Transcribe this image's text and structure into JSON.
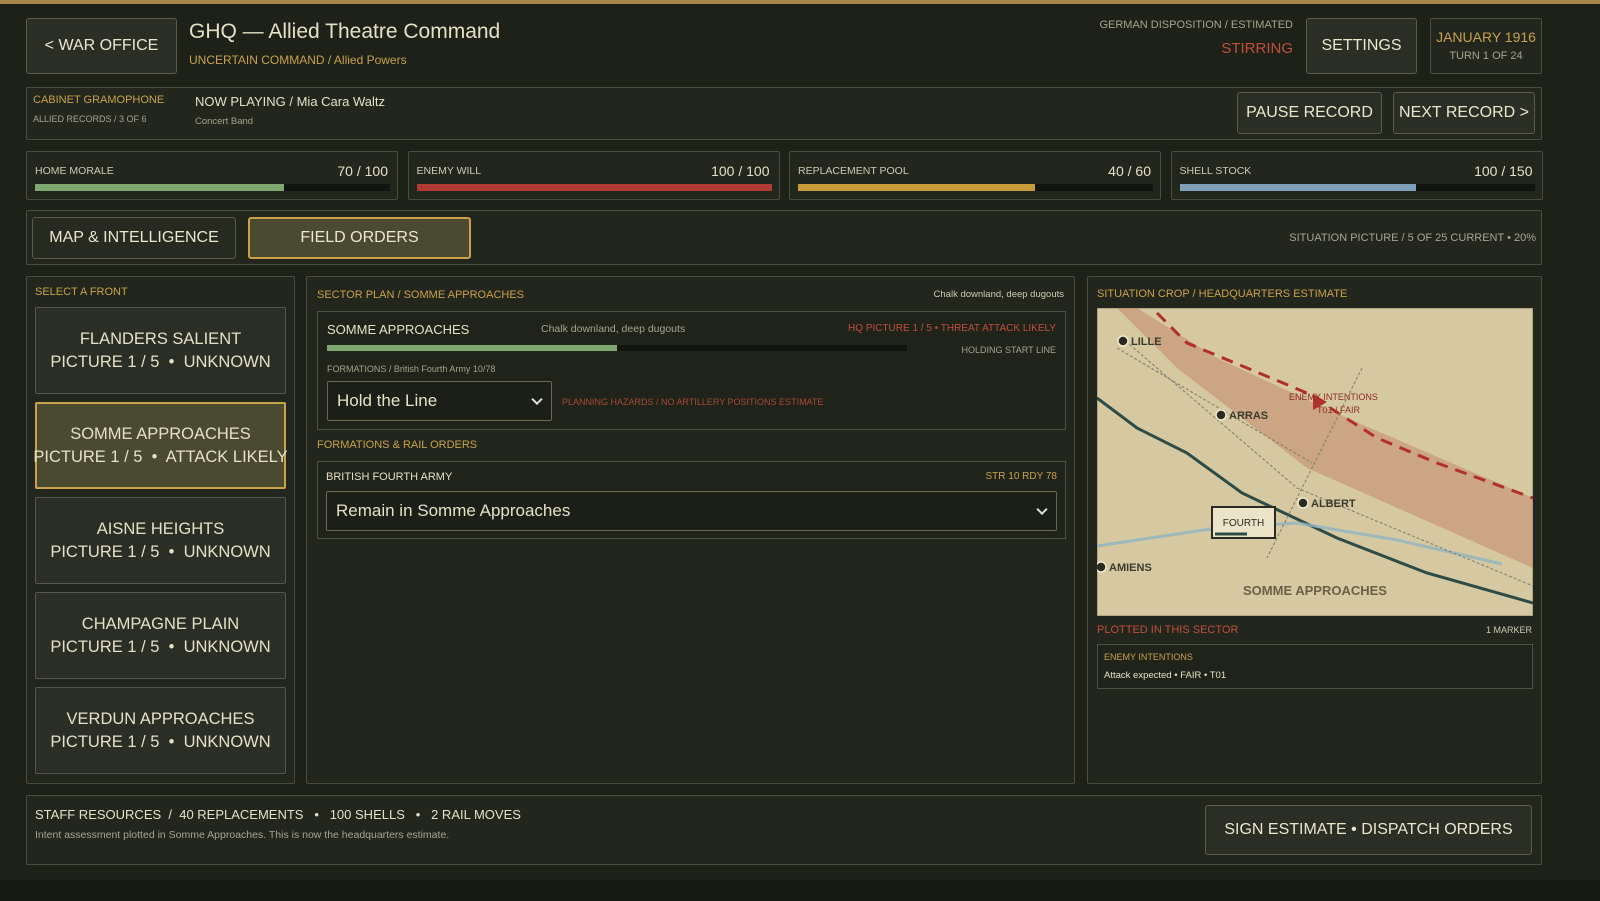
{
  "header": {
    "back": "<  WAR OFFICE",
    "title": "GHQ — Allied Theatre Command",
    "subtitle": "UNCERTAIN COMMAND  /  Allied Powers",
    "disposition_label": "GERMAN DISPOSITION  /  ESTIMATED",
    "disposition": "STIRRING",
    "settings": "SETTINGS",
    "date": "JANUARY 1916",
    "turn": "TURN 1 OF 24"
  },
  "gramophone": {
    "title": "CABINET GRAMOPHONE",
    "records": "ALLIED RECORDS  /  3 OF 6",
    "now_playing": "NOW PLAYING  /  Mia Cara Waltz",
    "artist": "Concert Band",
    "pause": "PAUSE RECORD",
    "next": "NEXT RECORD  >"
  },
  "stats": [
    {
      "label": "HOME MORALE",
      "value_label": "70 / 100",
      "value": 70,
      "max": 100,
      "color": "#7fa870"
    },
    {
      "label": "ENEMY WILL",
      "value_label": "100 / 100",
      "value": 100,
      "max": 100,
      "color": "#b23a34"
    },
    {
      "label": "REPLACEMENT POOL",
      "value_label": "40 / 60",
      "value": 40,
      "max": 60,
      "color": "#c79a3c"
    },
    {
      "label": "SHELL STOCK",
      "value_label": "100 / 150",
      "value": 100,
      "max": 150,
      "color": "#7f9fb8"
    }
  ],
  "tabs": {
    "map": "MAP & INTELLIGENCE",
    "orders": "FIELD ORDERS",
    "situation": "SITUATION PICTURE  /  5 OF 25 CURRENT  •  20%"
  },
  "fronts": {
    "title": "SELECT A FRONT",
    "selected": 1,
    "items": [
      {
        "name": "FLANDERS SALIENT",
        "status": "PICTURE 1 / 5  •  UNKNOWN"
      },
      {
        "name": "SOMME APPROACHES",
        "status": "PICTURE 1 / 5  •  ATTACK LIKELY"
      },
      {
        "name": "AISNE HEIGHTS",
        "status": "PICTURE 1 / 5  •  UNKNOWN"
      },
      {
        "name": "CHAMPAGNE PLAIN",
        "status": "PICTURE 1 / 5  •  UNKNOWN"
      },
      {
        "name": "VERDUN APPROACHES",
        "status": "PICTURE 1 / 5  •  UNKNOWN"
      }
    ]
  },
  "sector": {
    "title": "SECTOR PLAN  /  SOMME APPROACHES",
    "terrain_note": "Chalk downland, deep dugouts",
    "name": "SOMME APPROACHES",
    "terrain": "Chalk downland, deep dugouts",
    "threat": "HQ PICTURE 1 / 5  •  THREAT ATTACK LIKELY",
    "start": "HOLDING START LINE",
    "formations": "FORMATIONS  /  British Fourth Army 10/78",
    "plan": "Hold the Line",
    "hazards": "PLANNING HAZARDS  /  NO ARTILLERY POSITIONS ESTIMATE",
    "rail_title": "FORMATIONS & RAIL ORDERS",
    "army": "BRITISH FOURTH ARMY",
    "army_stats": "STR 10  RDY 78",
    "army_order": "Remain in Somme Approaches"
  },
  "map": {
    "title": "SITUATION CROP  /  HEADQUARTERS ESTIMATE",
    "towns": [
      "LILLE",
      "ARRAS",
      "ALBERT",
      "AMIENS"
    ],
    "intent": "ENEMY INTENTIONS",
    "intent_sub": "T01 / FAIR",
    "unit": "FOURTH",
    "region": "SOMME APPROACHES",
    "plotted": "PLOTTED IN THIS SECTOR",
    "markers": "1 MARKER",
    "card_title": "ENEMY INTENTIONS",
    "card_text": "Attack expected  •  FAIR  •  T01"
  },
  "footer": {
    "resources": "STAFF RESOURCES  /  40 REPLACEMENTS   •   100 SHELLS   •   2 RAIL MOVES",
    "note": "Intent assessment plotted in Somme Approaches. This is now the headquarters estimate.",
    "sign": "SIGN ESTIMATE  •  DISPATCH ORDERS"
  }
}
